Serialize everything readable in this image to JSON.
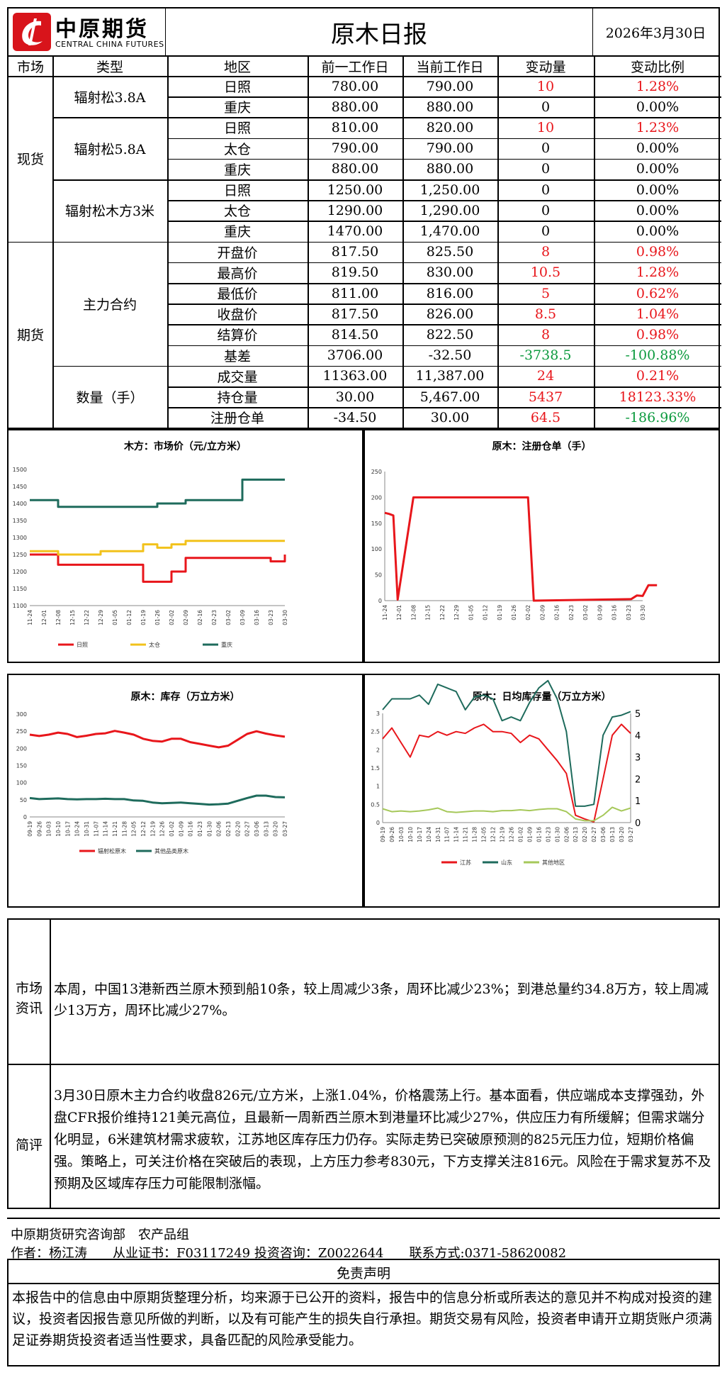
{
  "header": {
    "logo_cn": "中原期货",
    "logo_en": "CENTRAL CHINA FUTURES",
    "title": "原木日报",
    "date": "2026年3月30日"
  },
  "table": {
    "headers": [
      "市场",
      "类型",
      "地区",
      "前一工作日",
      "当前工作日",
      "变动量",
      "变动比例"
    ],
    "markets": {
      "spot": "现货",
      "futures": "期货"
    },
    "types": {
      "t1": "辐射松3.8A",
      "t2": "辐射松5.8A",
      "t3": "辐射松木方3米",
      "t4": "主力合约",
      "t5": "数量（手）"
    },
    "rows": [
      {
        "region": "日照",
        "prev": "780.00",
        "curr": "790.00",
        "chg": "10",
        "pct": "1.28%",
        "dir": "up"
      },
      {
        "region": "重庆",
        "prev": "880.00",
        "curr": "880.00",
        "chg": "0",
        "pct": "0.00%",
        "dir": "flat"
      },
      {
        "region": "日照",
        "prev": "810.00",
        "curr": "820.00",
        "chg": "10",
        "pct": "1.23%",
        "dir": "up"
      },
      {
        "region": "太仓",
        "prev": "790.00",
        "curr": "790.00",
        "chg": "0",
        "pct": "0.00%",
        "dir": "flat"
      },
      {
        "region": "重庆",
        "prev": "880.00",
        "curr": "880.00",
        "chg": "0",
        "pct": "0.00%",
        "dir": "flat"
      },
      {
        "region": "日照",
        "prev": "1250.00",
        "curr": "1,250.00",
        "chg": "0",
        "pct": "0.00%",
        "dir": "flat"
      },
      {
        "region": "太仓",
        "prev": "1290.00",
        "curr": "1,290.00",
        "chg": "0",
        "pct": "0.00%",
        "dir": "flat"
      },
      {
        "region": "重庆",
        "prev": "1470.00",
        "curr": "1,470.00",
        "chg": "0",
        "pct": "0.00%",
        "dir": "flat"
      },
      {
        "region": "开盘价",
        "prev": "817.50",
        "curr": "825.50",
        "chg": "8",
        "pct": "0.98%",
        "dir": "up"
      },
      {
        "region": "最高价",
        "prev": "819.50",
        "curr": "830.00",
        "chg": "10.5",
        "pct": "1.28%",
        "dir": "up"
      },
      {
        "region": "最低价",
        "prev": "811.00",
        "curr": "816.00",
        "chg": "5",
        "pct": "0.62%",
        "dir": "up"
      },
      {
        "region": "收盘价",
        "prev": "817.50",
        "curr": "826.00",
        "chg": "8.5",
        "pct": "1.04%",
        "dir": "up"
      },
      {
        "region": "结算价",
        "prev": "814.50",
        "curr": "822.50",
        "chg": "8",
        "pct": "0.98%",
        "dir": "up"
      },
      {
        "region": "基差",
        "prev": "3706.00",
        "curr": "-32.50",
        "chg": "-3738.5",
        "pct": "-100.88%",
        "dir": "down"
      },
      {
        "region": "成交量",
        "prev": "11363.00",
        "curr": "11,387.00",
        "chg": "24",
        "pct": "0.21%",
        "dir": "up"
      },
      {
        "region": "持仓量",
        "prev": "30.00",
        "curr": "5,467.00",
        "chg": "5437",
        "pct": "18123.33%",
        "dir": "up"
      },
      {
        "region": "注册仓单",
        "prev": "-34.50",
        "curr": "30.00",
        "chg": "64.5",
        "pct": "-186.96%",
        "dir": "updown"
      }
    ]
  },
  "colors": {
    "red": "#e8161b",
    "yellow": "#f2c21b",
    "green": "#1e6b5c",
    "lightgreen": "#a6c85a",
    "up": "#e8161b",
    "down": "#0c9a3e"
  },
  "chart_data": [
    {
      "type": "line",
      "title": "木方：市场价（元/立方米）",
      "x": [
        "11-24",
        "12-01",
        "12-08",
        "12-15",
        "12-22",
        "12-29",
        "01-05",
        "01-12",
        "01-19",
        "01-26",
        "02-02",
        "02-09",
        "02-16",
        "02-23",
        "03-02",
        "03-09",
        "03-16",
        "03-23",
        "03-30"
      ],
      "ylim": [
        1100,
        1500
      ],
      "yticks": [
        "1100",
        "1150",
        "1200",
        "1250",
        "1300",
        "1350",
        "1400",
        "1450",
        "1500"
      ],
      "legend": "bottom",
      "series": [
        {
          "name": "日照",
          "color": "#e8161b",
          "values": [
            1250,
            1250,
            1220,
            1220,
            1220,
            1220,
            1220,
            1220,
            1170,
            1170,
            1200,
            1240,
            1240,
            1240,
            1240,
            1240,
            1240,
            1230,
            1250
          ]
        },
        {
          "name": "太仓",
          "color": "#f2c21b",
          "values": [
            1260,
            1260,
            1250,
            1250,
            1250,
            1260,
            1260,
            1260,
            1280,
            1270,
            1280,
            1290,
            1290,
            1290,
            1290,
            1290,
            1290,
            1290,
            1290
          ]
        },
        {
          "name": "重庆",
          "color": "#1e6b5c",
          "values": [
            1410,
            1410,
            1390,
            1390,
            1390,
            1390,
            1390,
            1390,
            1390,
            1400,
            1400,
            1410,
            1410,
            1410,
            1410,
            1470,
            1470,
            1470,
            1470
          ]
        }
      ]
    },
    {
      "type": "line",
      "title": "原木：注册仓单（手）",
      "x": [
        "11-24",
        "12-01",
        "12-08",
        "12-15",
        "12-22",
        "12-29",
        "01-05",
        "01-12",
        "01-19",
        "01-26",
        "02-02",
        "02-09",
        "02-16",
        "02-23",
        "03-02",
        "03-09",
        "03-16",
        "03-23",
        "03-30"
      ],
      "ylim": [
        0,
        250
      ],
      "yticks": [
        "0",
        "50",
        "100",
        "150",
        "200",
        "250"
      ],
      "series": [
        {
          "name": "注册仓单",
          "color": "#e8161b",
          "points": [
            [
              0,
              170
            ],
            [
              0.3,
              168
            ],
            [
              0.6,
              165
            ],
            [
              0.9,
              2
            ],
            [
              2.0,
              200
            ],
            [
              10.0,
              200
            ],
            [
              10.4,
              0
            ],
            [
              17.2,
              3
            ],
            [
              17.6,
              10
            ],
            [
              18.0,
              9
            ],
            [
              18.4,
              30
            ],
            [
              19,
              30
            ]
          ]
        }
      ]
    },
    {
      "type": "line",
      "title": "原木：库存（万立方米）",
      "x": [
        "09-19",
        "09-26",
        "10-03",
        "10-10",
        "10-17",
        "10-24",
        "10-31",
        "11-07",
        "11-14",
        "11-21",
        "11-28",
        "12-05",
        "12-12",
        "12-19",
        "12-26",
        "01-02",
        "01-09",
        "01-16",
        "01-23",
        "01-30",
        "02-06",
        "02-13",
        "02-20",
        "02-27",
        "03-06",
        "03-13",
        "03-20",
        "03-27"
      ],
      "ylim": [
        0,
        300
      ],
      "yticks": [
        "0",
        "50",
        "100",
        "150",
        "200",
        "250",
        "300"
      ],
      "legend": "bottom",
      "series": [
        {
          "name": "辐射松原木",
          "color": "#e8161b",
          "values": [
            240,
            236,
            240,
            246,
            242,
            233,
            237,
            242,
            244,
            251,
            246,
            240,
            228,
            222,
            220,
            228,
            228,
            218,
            213,
            208,
            203,
            208,
            225,
            242,
            250,
            243,
            238,
            234
          ]
        },
        {
          "name": "其他品类原木",
          "color": "#1e6b5c",
          "values": [
            55,
            52,
            53,
            54,
            52,
            51,
            52,
            52,
            53,
            52,
            52,
            48,
            47,
            42,
            40,
            41,
            42,
            40,
            38,
            36,
            37,
            39,
            47,
            55,
            62,
            62,
            58,
            57
          ]
        }
      ]
    },
    {
      "type": "line",
      "title": "原木：日均库存量（万立方米）",
      "x": [
        "09-19",
        "09-26",
        "10-03",
        "10-10",
        "10-17",
        "10-24",
        "10-31",
        "11-07",
        "11-14",
        "11-21",
        "11-28",
        "12-05",
        "12-12",
        "12-19",
        "12-26",
        "01-02",
        "01-09",
        "01-16",
        "01-23",
        "01-30",
        "02-06",
        "02-13",
        "02-20",
        "02-27",
        "03-06",
        "03-13",
        "03-20",
        "03-27"
      ],
      "ylim": [
        0,
        3
      ],
      "ylim_right": [
        0,
        5
      ],
      "yticks": [
        "0",
        "0.5",
        "1",
        "1.5",
        "2",
        "2.5",
        "3"
      ],
      "yticks_right": [
        "0",
        "1",
        "2",
        "3",
        "4",
        "5"
      ],
      "legend": "bottom",
      "series": [
        {
          "name": "江苏",
          "color": "#e8161b",
          "values": [
            2.3,
            2.6,
            2.2,
            1.8,
            2.4,
            2.35,
            2.5,
            2.4,
            2.5,
            2.45,
            2.6,
            2.7,
            2.5,
            2.5,
            2.45,
            2.2,
            2.4,
            2.3,
            2.0,
            1.7,
            1.35,
            0.2,
            0.1,
            0.02,
            1.2,
            2.4,
            2.7,
            2.45
          ]
        },
        {
          "name": "山东",
          "color": "#1e6b5c",
          "values": [
            3.1,
            3.4,
            3.4,
            3.4,
            3.5,
            3.25,
            3.8,
            3.7,
            3.6,
            3.1,
            3.45,
            3.5,
            3.4,
            2.8,
            2.9,
            2.8,
            3.3,
            3.7,
            3.9,
            3.4,
            2.5,
            0.45,
            0.45,
            0.5,
            2.4,
            2.9,
            2.95,
            3.05
          ]
        },
        {
          "name": "其他地区",
          "color": "#a6c85a",
          "values": [
            0.38,
            0.3,
            0.32,
            0.3,
            0.32,
            0.35,
            0.4,
            0.3,
            0.28,
            0.3,
            0.32,
            0.32,
            0.3,
            0.33,
            0.33,
            0.35,
            0.33,
            0.36,
            0.38,
            0.38,
            0.3,
            0.1,
            0.05,
            0.05,
            0.2,
            0.42,
            0.32,
            0.4
          ]
        }
      ]
    }
  ],
  "news": {
    "label1": "市场",
    "label2": "资讯",
    "text": "本周，中国13港新西兰原木预到船10条，较上周减少3条，周环比减少23%；到港总量约34.8万方，较上周减少13万方，周环比减少27%。"
  },
  "comment": {
    "label": "简评",
    "text": "3月30日原木主力合约收盘826元/立方米，上涨1.04%，价格震荡上行。基本面看，供应端成本支撑强劲，外盘CFR报价维持121美元高位，且最新一周新西兰原木到港量环比减少27%，供应压力有所缓解；但需求端分化明显，6米建筑材需求疲软，江苏地区库存压力仍存。实际走势已突破原预测的825元压力位，短期价格偏强。策略上，可关注价格在突破后的表现，上方压力参考830元，下方支撑关注816元。风险在于需求复苏不及预期及区域库存压力可能限制涨幅。"
  },
  "footer": {
    "dept": "中原期货研究咨询部　农产品组",
    "author": "作者：杨江涛　　从业证书：F03117249 投资咨询：Z0022644　　联系方式:0371-58620082",
    "disclaimer_title": "免责声明",
    "disclaimer": "本报告中的信息由中原期货整理分析，均来源于已公开的资料，报告中的信息分析或所表达的意见并不构成对投资的建议，投资者因报告意见所做的判断，以及有可能产生的损失自行承担。期货交易有风险，投资者申请开立期货账户须满足证券期货投资者适当性要求，具备匹配的风险承受能力。"
  }
}
